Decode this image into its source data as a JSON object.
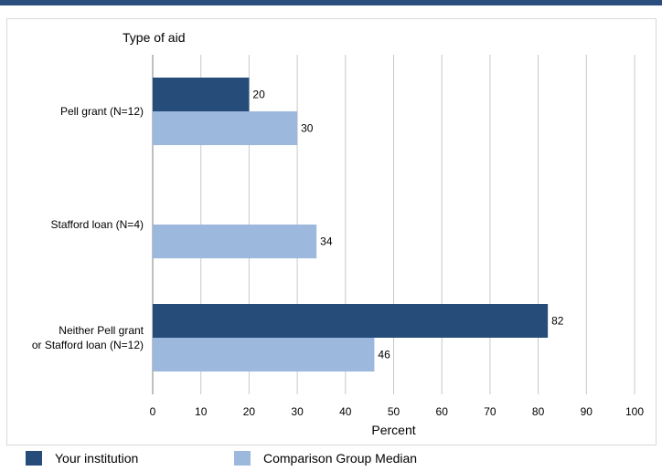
{
  "chart_data": {
    "type": "bar",
    "orientation": "horizontal",
    "title": "Type of aid",
    "xlabel": "Percent",
    "ylabel": "",
    "xlim": [
      0,
      100
    ],
    "ticks": [
      0,
      10,
      20,
      30,
      40,
      50,
      60,
      70,
      80,
      90,
      100
    ],
    "grid": true,
    "categories": [
      [
        "Pell grant  (N=12)"
      ],
      [
        "Stafford loan (N=4)"
      ],
      [
        "Neither Pell grant",
        "or Stafford loan (N=12)"
      ]
    ],
    "series": [
      {
        "name": "Your institution",
        "color": "#264c7a",
        "values": [
          20,
          null,
          82
        ]
      },
      {
        "name": "Comparison Group Median",
        "color": "#9cb8dd",
        "values": [
          30,
          34,
          46
        ]
      }
    ],
    "legend_position": "bottom"
  }
}
